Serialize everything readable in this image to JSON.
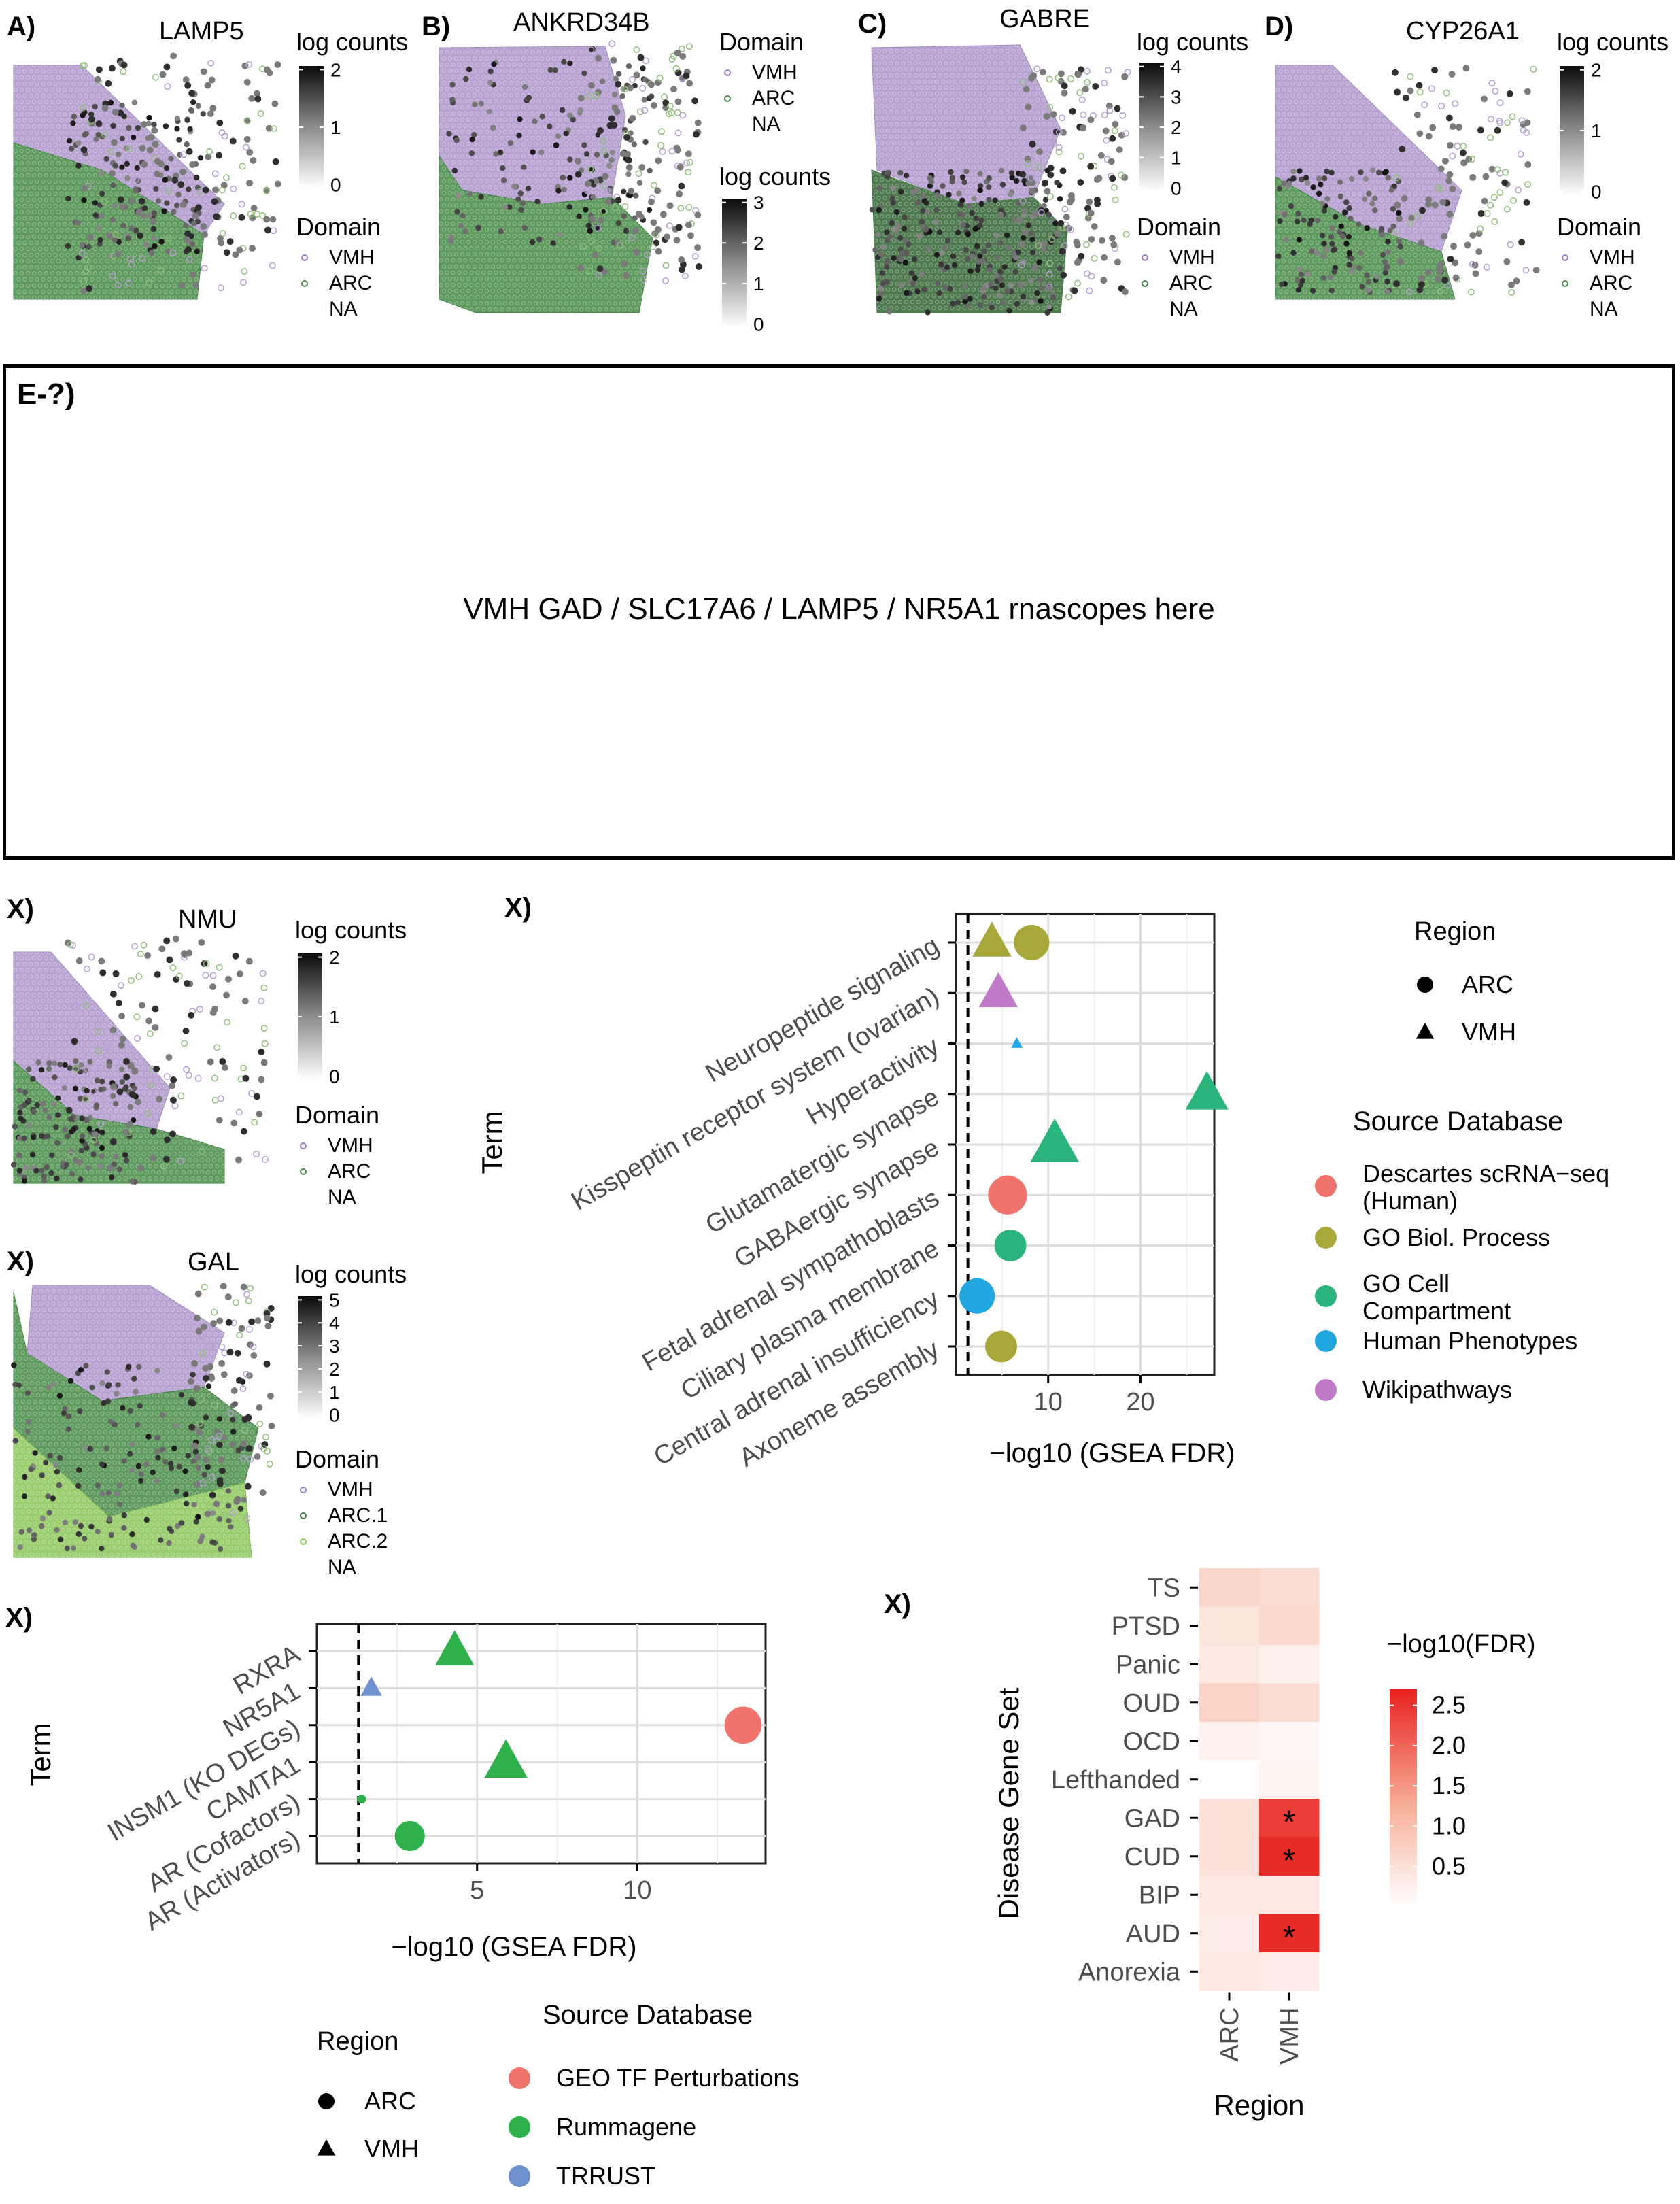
{
  "panels": {
    "A": {
      "tag": "A)",
      "gene": "LAMP5",
      "scale_title": "log counts",
      "ticks": [
        "2",
        "1",
        "0"
      ],
      "domain_title": "Domain",
      "domains": [
        "VMH",
        "ARC",
        "NA"
      ]
    },
    "B": {
      "tag": "B)",
      "gene": "ANKRD34B",
      "domain_title": "Domain",
      "domains": [
        "VMH",
        "ARC",
        "NA"
      ],
      "scale_title": "log counts",
      "ticks": [
        "3",
        "2",
        "1",
        "0"
      ]
    },
    "C": {
      "tag": "C)",
      "gene": "GABRE",
      "scale_title": "log counts",
      "ticks": [
        "4",
        "3",
        "2",
        "1",
        "0"
      ],
      "domain_title": "Domain",
      "domains": [
        "VMH",
        "ARC",
        "NA"
      ]
    },
    "D": {
      "tag": "D)",
      "gene": "CYP26A1",
      "scale_title": "log counts",
      "ticks": [
        "2",
        "1",
        "0"
      ],
      "domain_title": "Domain",
      "domains": [
        "VMH",
        "ARC",
        "NA"
      ]
    },
    "E": {
      "tag": "E-?)",
      "message": "VMH GAD / SLC17A6 / LAMP5 / NR5A1 rnascopes here"
    },
    "NMU": {
      "tag": "X)",
      "gene": "NMU",
      "scale_title": "log counts",
      "ticks": [
        "2",
        "1",
        "0"
      ],
      "domain_title": "Domain",
      "domains": [
        "VMH",
        "ARC",
        "NA"
      ]
    },
    "GAL": {
      "tag": "X)",
      "gene": "GAL",
      "scale_title": "log counts",
      "ticks": [
        "5",
        "4",
        "3",
        "2",
        "1",
        "0"
      ],
      "domain_title": "Domain",
      "domains": [
        "VMH",
        "ARC.1",
        "ARC.2",
        "NA"
      ]
    }
  },
  "colors": {
    "vmh": "#b9a3d3",
    "arc": "#5f9a5e",
    "arc2": "#9acd6e",
    "descartes": "#f0736c",
    "gobp": "#a8a83a",
    "gocc": "#2bb37c",
    "hpo": "#22a6e0",
    "wiki": "#c07ac8",
    "geo": "#f0736c",
    "rummagene": "#2eb14a",
    "trrust": "#6f92cf"
  },
  "chart_data": [
    {
      "type": "scatter",
      "tag": "X)",
      "xlabel": "−log10 (GSEA FDR)",
      "ylabel": "Term",
      "xticks": [
        "10",
        "20"
      ],
      "xlim": [
        0,
        28
      ],
      "threshold": 1.3,
      "categories": [
        "Neuropeptide signaling",
        "Kisspeptin receptor system (ovarian)",
        "Hyperactivity",
        "Glutamatergic synapse",
        "GABAergic synapse",
        "Fetal adrenal sympathoblasts",
        "Ciliary plasma membrane",
        "Central adrenal insufficiency",
        "Axoneme assembly"
      ],
      "points": [
        {
          "term": 0,
          "x": 3.9,
          "region": "VMH",
          "db": "gobp",
          "size": 1.0
        },
        {
          "term": 0,
          "x": 8.2,
          "region": "ARC",
          "db": "gobp",
          "size": 1.0
        },
        {
          "term": 1,
          "x": 4.6,
          "region": "VMH",
          "db": "wiki",
          "size": 1.0
        },
        {
          "term": 2,
          "x": 6.6,
          "region": "VMH",
          "db": "hpo",
          "size": 0.3
        },
        {
          "term": 3,
          "x": 27.2,
          "region": "VMH",
          "db": "gocc",
          "size": 1.1
        },
        {
          "term": 4,
          "x": 10.7,
          "region": "VMH",
          "db": "gocc",
          "size": 1.25
        },
        {
          "term": 5,
          "x": 5.6,
          "region": "ARC",
          "db": "descartes",
          "size": 1.1
        },
        {
          "term": 6,
          "x": 5.9,
          "region": "ARC",
          "db": "gocc",
          "size": 0.9
        },
        {
          "term": 7,
          "x": 2.3,
          "region": "ARC",
          "db": "hpo",
          "size": 1.0
        },
        {
          "term": 8,
          "x": 4.9,
          "region": "ARC",
          "db": "gobp",
          "size": 0.9
        }
      ],
      "legend_region_title": "Region",
      "legend_regions": [
        "ARC",
        "VMH"
      ],
      "legend_db_title": "Source Database",
      "legend_db": [
        [
          "Descartes scRNA−seq",
          "(Human)"
        ],
        [
          "GO Biol. Process"
        ],
        [
          "GO Cell",
          "Compartment"
        ],
        [
          "Human Phenotypes"
        ],
        [
          "Wikipathways"
        ]
      ]
    },
    {
      "type": "scatter",
      "tag": "X)",
      "xlabel": "−log10 (GSEA FDR)",
      "ylabel": "Term",
      "xticks": [
        "5",
        "10"
      ],
      "xlim": [
        0,
        14
      ],
      "threshold": 1.3,
      "categories": [
        "RXRA",
        "NR5A1",
        "INSM1 (KO DEGs)",
        "CAMTA1",
        "AR (Cofactors)",
        "AR (Activators)"
      ],
      "points": [
        {
          "term": 0,
          "x": 4.3,
          "region": "VMH",
          "db": "rummagene",
          "size": 1.0
        },
        {
          "term": 1,
          "x": 1.7,
          "region": "VMH",
          "db": "trrust",
          "size": 0.55
        },
        {
          "term": 2,
          "x": 13.3,
          "region": "ARC",
          "db": "geo",
          "size": 1.05
        },
        {
          "term": 3,
          "x": 5.9,
          "region": "VMH",
          "db": "rummagene",
          "size": 1.1
        },
        {
          "term": 4,
          "x": 1.4,
          "region": "ARC",
          "db": "rummagene",
          "size": 0.25
        },
        {
          "term": 5,
          "x": 2.9,
          "region": "ARC",
          "db": "rummagene",
          "size": 0.85
        }
      ],
      "legend_region_title": "Region",
      "legend_regions": [
        "ARC",
        "VMH"
      ],
      "legend_db_title": "Source Database",
      "legend_db": [
        [
          "GEO TF Perturbations"
        ],
        [
          "Rummagene"
        ],
        [
          "TRRUST"
        ]
      ]
    },
    {
      "type": "heatmap",
      "tag": "X)",
      "xlabel": "Region",
      "ylabel": "Disease Gene Set",
      "columns": [
        "ARC",
        "VMH"
      ],
      "rows": [
        "TS",
        "PTSD",
        "Panic",
        "OUD",
        "OCD",
        "Lefthanded",
        "GAD",
        "CUD",
        "BIP",
        "AUD",
        "Anorexia"
      ],
      "values": [
        [
          0.65,
          0.55
        ],
        [
          0.4,
          0.6
        ],
        [
          0.35,
          0.25
        ],
        [
          0.7,
          0.55
        ],
        [
          0.2,
          0.12
        ],
        [
          0.0,
          0.18
        ],
        [
          0.45,
          2.4
        ],
        [
          0.45,
          2.6
        ],
        [
          0.35,
          0.35
        ],
        [
          0.3,
          2.6
        ],
        [
          0.35,
          0.3
        ]
      ],
      "significant": [
        [
          false,
          false
        ],
        [
          false,
          false
        ],
        [
          false,
          false
        ],
        [
          false,
          false
        ],
        [
          false,
          false
        ],
        [
          false,
          false
        ],
        [
          false,
          true
        ],
        [
          false,
          true
        ],
        [
          false,
          false
        ],
        [
          false,
          true
        ],
        [
          false,
          false
        ]
      ],
      "colorbar_title": "−log10(FDR)",
      "colorbar_ticks": [
        "2.5",
        "2.0",
        "1.5",
        "1.0",
        "0.5"
      ],
      "range": [
        0,
        2.7
      ]
    }
  ]
}
